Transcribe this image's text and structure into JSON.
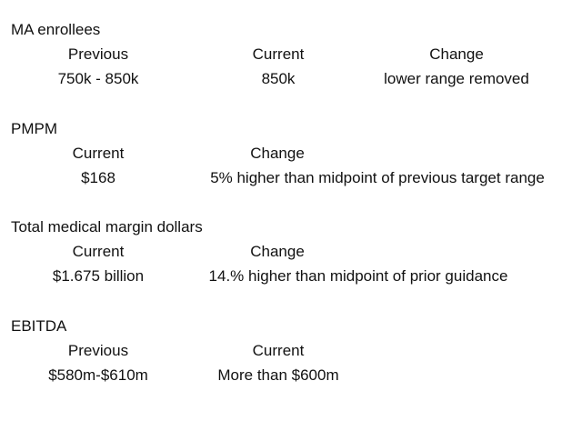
{
  "sections": [
    {
      "title": "MA enrollees",
      "headers": [
        "Previous",
        "Current",
        "Change"
      ],
      "values": [
        "750k - 850k",
        "850k",
        "lower range removed"
      ]
    },
    {
      "title": "PMPM",
      "headers": [
        "Current",
        "Change"
      ],
      "values": [
        "$168",
        "5% higher than midpoint of previous target range"
      ]
    },
    {
      "title": "Total medical margin dollars",
      "headers": [
        "Current",
        "Change"
      ],
      "values": [
        "$1.675 billion",
        "14.% higher than midpoint of prior guidance"
      ]
    },
    {
      "title": "EBITDA",
      "headers": [
        "Previous",
        "Current"
      ],
      "values": [
        "$580m-$610m",
        "More than $600m"
      ]
    }
  ]
}
